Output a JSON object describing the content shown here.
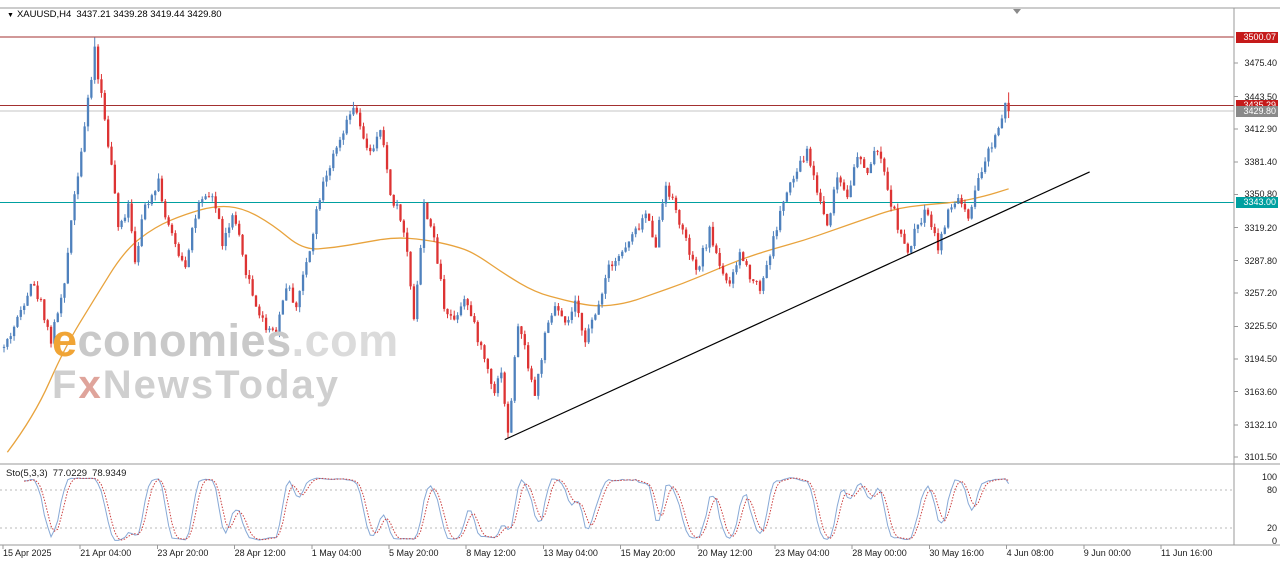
{
  "window": {
    "dropdown_icon": "▼",
    "symbol_label": "XAUUSD,H4",
    "ohlc": "3437.21 3439.28 3419.44 3429.80"
  },
  "watermark": {
    "brand_accent": "e",
    "brand_rest": "conomies",
    "brand_tld": ".com",
    "tagline_f": "F",
    "tagline_x": "x",
    "tagline_rest": "NewsToday"
  },
  "chart_data": {
    "type": "candlestick",
    "symbol": "XAUUSD",
    "timeframe": "H4",
    "ylim": [
      3101.5,
      3500.07
    ],
    "grid": false,
    "num_candles": 300,
    "noise_seed": 42,
    "candle_up_color": "#4f81bd",
    "candle_down_color": "#dd3333",
    "y_ticks": [
      "3475.40",
      "3443.50",
      "3412.90",
      "3381.40",
      "3350.80",
      "3319.20",
      "3287.80",
      "3257.20",
      "3225.50",
      "3194.50",
      "3163.60",
      "3132.10",
      "3101.50"
    ],
    "x_labels": [
      "15 Apr 2025",
      "21 Apr 04:00",
      "23 Apr 20:00",
      "28 Apr 12:00",
      "1 May 04:00",
      "5 May 20:00",
      "8 May 12:00",
      "13 May 04:00",
      "15 May 20:00",
      "20 May 12:00",
      "23 May 04:00",
      "28 May 00:00",
      "30 May 16:00",
      "4 Jun 08:00",
      "9 Jun 00:00",
      "11 Jun 16:00"
    ],
    "levels": [
      {
        "price": 3500.07,
        "label": "3500.07",
        "line_color": "#a33030",
        "badge_color": "#c51a1a"
      },
      {
        "price": 3435.29,
        "label": "3435.29",
        "line_color": "#a33030",
        "badge_color": "#c51a1a"
      },
      {
        "price": 3429.8,
        "label": "3429.80",
        "line_color": "#c4c4c4",
        "badge_color": "#8a8a8a"
      },
      {
        "price": 3343.0,
        "label": "3343.00",
        "line_color": "#00a0a0",
        "badge_color": "#00a0a0"
      }
    ],
    "trendline": {
      "x1_frac": 0.409,
      "price1": 3118,
      "x2_frac": 0.883,
      "price2": 3372,
      "color": "#000000"
    },
    "ma": {
      "color": "#e8a33d",
      "points": [
        [
          1,
          3106
        ],
        [
          9,
          3140
        ],
        [
          18,
          3205
        ],
        [
          27,
          3252
        ],
        [
          36,
          3298
        ],
        [
          45,
          3320
        ],
        [
          54,
          3332
        ],
        [
          63,
          3340
        ],
        [
          71,
          3338
        ],
        [
          80,
          3322
        ],
        [
          89,
          3298
        ],
        [
          98,
          3300
        ],
        [
          107,
          3305
        ],
        [
          116,
          3310
        ],
        [
          125,
          3308
        ],
        [
          134,
          3302
        ],
        [
          140,
          3295
        ],
        [
          149,
          3275
        ],
        [
          158,
          3258
        ],
        [
          167,
          3250
        ],
        [
          176,
          3244
        ],
        [
          185,
          3247
        ],
        [
          193,
          3256
        ],
        [
          202,
          3266
        ],
        [
          211,
          3278
        ],
        [
          220,
          3290
        ],
        [
          229,
          3299
        ],
        [
          238,
          3307
        ],
        [
          247,
          3317
        ],
        [
          256,
          3327
        ],
        [
          265,
          3337
        ],
        [
          274,
          3341
        ],
        [
          283,
          3343
        ],
        [
          292,
          3349
        ],
        [
          299,
          3356
        ]
      ]
    },
    "price_keyframes": [
      [
        0,
        3205
      ],
      [
        4,
        3232
      ],
      [
        8,
        3268
      ],
      [
        11,
        3248
      ],
      [
        14,
        3212
      ],
      [
        16,
        3240
      ],
      [
        18,
        3262
      ],
      [
        20,
        3330
      ],
      [
        22,
        3372
      ],
      [
        24,
        3415
      ],
      [
        26,
        3460
      ],
      [
        27,
        3490
      ],
      [
        28,
        3462
      ],
      [
        29,
        3445
      ],
      [
        31,
        3400
      ],
      [
        33,
        3352
      ],
      [
        34,
        3315
      ],
      [
        36,
        3332
      ],
      [
        37,
        3345
      ],
      [
        39,
        3290
      ],
      [
        42,
        3340
      ],
      [
        44,
        3352
      ],
      [
        46,
        3365
      ],
      [
        48,
        3330
      ],
      [
        50,
        3310
      ],
      [
        52,
        3295
      ],
      [
        54,
        3285
      ],
      [
        56,
        3318
      ],
      [
        58,
        3340
      ],
      [
        60,
        3345
      ],
      [
        62,
        3350
      ],
      [
        64,
        3325
      ],
      [
        65,
        3305
      ],
      [
        67,
        3318
      ],
      [
        68,
        3330
      ],
      [
        70,
        3308
      ],
      [
        71,
        3290
      ],
      [
        73,
        3268
      ],
      [
        74,
        3255
      ],
      [
        76,
        3238
      ],
      [
        78,
        3225
      ],
      [
        81,
        3222
      ],
      [
        84,
        3265
      ],
      [
        86,
        3252
      ],
      [
        87,
        3245
      ],
      [
        89,
        3272
      ],
      [
        91,
        3300
      ],
      [
        93,
        3335
      ],
      [
        95,
        3365
      ],
      [
        97,
        3378
      ],
      [
        99,
        3392
      ],
      [
        101,
        3408
      ],
      [
        104,
        3434
      ],
      [
        106,
        3415
      ],
      [
        107,
        3400
      ],
      [
        109,
        3394
      ],
      [
        110,
        3392
      ],
      [
        112,
        3412
      ],
      [
        114,
        3375
      ],
      [
        115,
        3350
      ],
      [
        117,
        3338
      ],
      [
        118,
        3330
      ],
      [
        120,
        3295
      ],
      [
        122,
        3235
      ],
      [
        124,
        3300
      ],
      [
        125,
        3340
      ],
      [
        127,
        3322
      ],
      [
        128,
        3305
      ],
      [
        130,
        3268
      ],
      [
        131,
        3245
      ],
      [
        134,
        3232
      ],
      [
        137,
        3255
      ],
      [
        140,
        3225
      ],
      [
        143,
        3195
      ],
      [
        146,
        3165
      ],
      [
        148,
        3185
      ],
      [
        150,
        3122
      ],
      [
        153,
        3228
      ],
      [
        155,
        3205
      ],
      [
        158,
        3160
      ],
      [
        161,
        3215
      ],
      [
        164,
        3245
      ],
      [
        167,
        3225
      ],
      [
        170,
        3245
      ],
      [
        173,
        3215
      ],
      [
        176,
        3235
      ],
      [
        180,
        3285
      ],
      [
        184,
        3295
      ],
      [
        188,
        3315
      ],
      [
        191,
        3332
      ],
      [
        194,
        3305
      ],
      [
        197,
        3362
      ],
      [
        200,
        3335
      ],
      [
        203,
        3305
      ],
      [
        206,
        3275
      ],
      [
        210,
        3315
      ],
      [
        213,
        3285
      ],
      [
        216,
        3262
      ],
      [
        219,
        3295
      ],
      [
        222,
        3275
      ],
      [
        225,
        3262
      ],
      [
        228,
        3295
      ],
      [
        232,
        3345
      ],
      [
        236,
        3372
      ],
      [
        239,
        3392
      ],
      [
        242,
        3355
      ],
      [
        245,
        3322
      ],
      [
        248,
        3368
      ],
      [
        251,
        3352
      ],
      [
        254,
        3385
      ],
      [
        257,
        3372
      ],
      [
        260,
        3395
      ],
      [
        263,
        3355
      ],
      [
        266,
        3322
      ],
      [
        269,
        3292
      ],
      [
        272,
        3325
      ],
      [
        275,
        3335
      ],
      [
        278,
        3302
      ],
      [
        281,
        3332
      ],
      [
        284,
        3348
      ],
      [
        287,
        3325
      ],
      [
        290,
        3362
      ],
      [
        293,
        3392
      ],
      [
        296,
        3415
      ],
      [
        298,
        3440
      ],
      [
        299,
        3430
      ]
    ],
    "overrides": [
      {
        "i": 27,
        "h": 3499.5
      },
      {
        "i": 104,
        "h": 3438.5
      },
      {
        "i": 150,
        "l": 3119.5
      },
      {
        "i": 299,
        "c": 3429.8,
        "h": 3447.5
      }
    ],
    "stochastic": {
      "name": "Sto(5,3,3)",
      "k_value": "77.0229",
      "d_value": "78.9349",
      "k_color": "#88a9d6",
      "d_color": "#cc4040",
      "scale_labels": [
        "100",
        "80",
        "20",
        "0"
      ],
      "level_lines": [
        80,
        20
      ],
      "ylim": [
        0,
        100
      ]
    }
  }
}
